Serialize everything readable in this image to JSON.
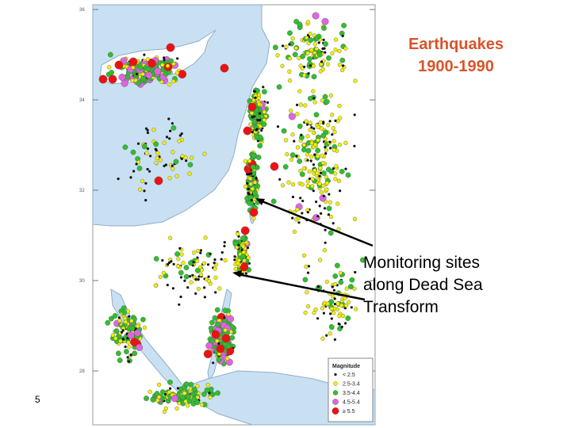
{
  "slide": {
    "title_line1": "Earthquakes",
    "title_line2": "1900-1990",
    "annotation_lines": [
      "Monitoring sites",
      "along Dead Sea",
      "Transform"
    ],
    "slide_number": "5"
  },
  "map": {
    "latitude_labels": [
      "36",
      "34",
      "32",
      "30",
      "28"
    ],
    "legend": {
      "title": "Magnitude",
      "items": [
        {
          "label": "< 2.5",
          "color": "#111111",
          "shape": "dot"
        },
        {
          "label": "2.5-3.4",
          "color": "#f2f000",
          "shape": "circle"
        },
        {
          "label": "3.5-4.4",
          "color": "#2fbf2f",
          "shape": "circle"
        },
        {
          "label": "4.5-5.4",
          "color": "#dd66dd",
          "shape": "circle"
        },
        {
          "label": "≥ 5.5",
          "color": "#ee1111",
          "shape": "circle"
        }
      ]
    },
    "colors": {
      "sea": "#c9e0f2",
      "land": "#ffffff",
      "coast": "#8eaec9",
      "frame": "#999999"
    }
  }
}
